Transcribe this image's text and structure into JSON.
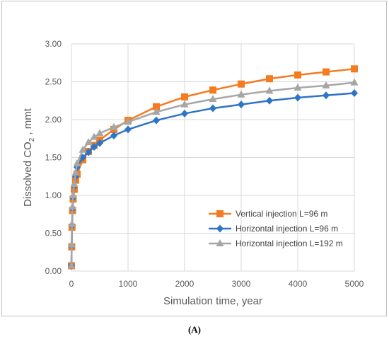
{
  "panel_label": "(A)",
  "chart_data": {
    "type": "line",
    "xlabel": "Simulation time, year",
    "ylabel_main": "Dissolved CO",
    "ylabel_sub": "2",
    "ylabel_tail": " , mmt",
    "xlim": [
      0,
      5000
    ],
    "ylim": [
      0,
      3
    ],
    "xticks": [
      0,
      1000,
      2000,
      3000,
      4000,
      5000
    ],
    "xtick_labels": [
      "0",
      "1000",
      "2000",
      "3000",
      "4000",
      "5000"
    ],
    "yticks": [
      0,
      0.5,
      1,
      1.5,
      2,
      2.5,
      3
    ],
    "ytick_labels": [
      "0.00",
      "0.50",
      "1.00",
      "1.50",
      "2.00",
      "2.50",
      "3.00"
    ],
    "grid": true,
    "legend_position": "bottom-right",
    "series": [
      {
        "name": "Vertical injection L=96 m",
        "color": "#f47b20",
        "marker": "square",
        "x": [
          0,
          5,
          10,
          20,
          30,
          50,
          75,
          100,
          200,
          300,
          400,
          500,
          750,
          1000,
          1500,
          2000,
          2500,
          3000,
          3500,
          4000,
          4500,
          5000
        ],
        "y": [
          0.07,
          0.32,
          0.58,
          0.8,
          0.95,
          1.08,
          1.2,
          1.28,
          1.47,
          1.58,
          1.66,
          1.73,
          1.87,
          1.99,
          2.17,
          2.3,
          2.39,
          2.47,
          2.54,
          2.59,
          2.63,
          2.67
        ]
      },
      {
        "name": "Horizontal injection L=96 m",
        "color": "#2e75c6",
        "marker": "diamond",
        "x": [
          0,
          5,
          10,
          20,
          30,
          50,
          75,
          100,
          200,
          300,
          400,
          500,
          750,
          1000,
          1500,
          2000,
          2500,
          3000,
          3500,
          4000,
          4500,
          5000
        ],
        "y": [
          0.07,
          0.33,
          0.6,
          0.82,
          0.97,
          1.12,
          1.25,
          1.37,
          1.5,
          1.57,
          1.64,
          1.69,
          1.79,
          1.87,
          1.99,
          2.08,
          2.15,
          2.2,
          2.25,
          2.29,
          2.32,
          2.35
        ]
      },
      {
        "name": "Horizontal injection L=192 m",
        "color": "#a6a6a6",
        "marker": "triangle",
        "x": [
          0,
          5,
          10,
          20,
          30,
          50,
          75,
          100,
          200,
          300,
          400,
          500,
          750,
          1000,
          1500,
          2000,
          2500,
          3000,
          3500,
          4000,
          4500,
          5000
        ],
        "y": [
          0.07,
          0.35,
          0.62,
          0.85,
          1.0,
          1.15,
          1.3,
          1.42,
          1.6,
          1.7,
          1.77,
          1.82,
          1.9,
          1.97,
          2.1,
          2.2,
          2.27,
          2.33,
          2.38,
          2.42,
          2.45,
          2.49
        ]
      }
    ]
  }
}
